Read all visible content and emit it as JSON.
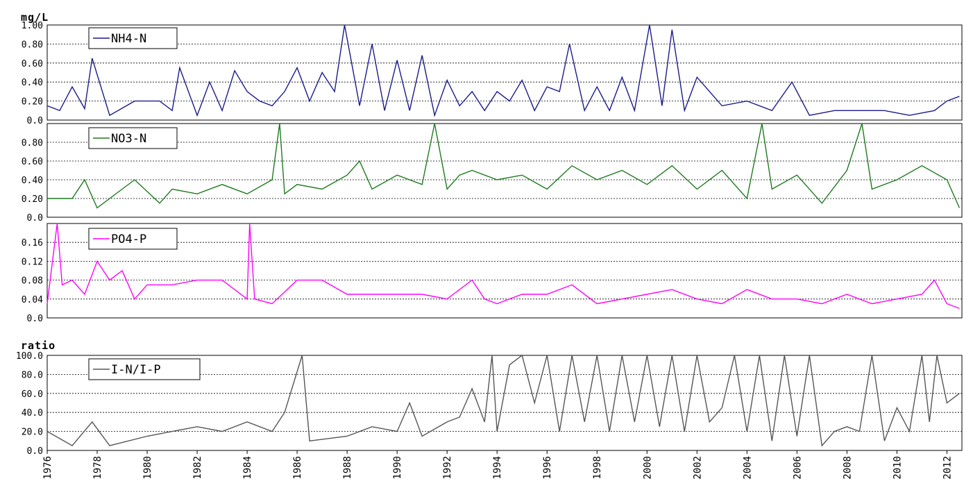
{
  "chart_data": [
    {
      "type": "line",
      "unit_label": "mg/L",
      "legend": "NH4-N",
      "color": "#1a1a8c",
      "ylim": [
        0,
        1.0
      ],
      "yticks": [
        "1.00",
        "0.80",
        "0.60",
        "0.40",
        "0.20",
        "0.0"
      ],
      "grid": true,
      "x": [
        1976.0,
        1976.5,
        1977.0,
        1977.5,
        1977.8,
        1978.5,
        1979.5,
        1980.5,
        1981.0,
        1981.3,
        1982.0,
        1982.5,
        1983.0,
        1983.5,
        1984.0,
        1984.5,
        1985.0,
        1985.5,
        1986.0,
        1986.5,
        1987.0,
        1987.5,
        1987.9,
        1988.5,
        1989.0,
        1989.5,
        1990.0,
        1990.5,
        1991.0,
        1991.5,
        1992.0,
        1992.5,
        1993.0,
        1993.5,
        1994.0,
        1994.5,
        1995.0,
        1995.5,
        1996.0,
        1996.5,
        1996.9,
        1997.5,
        1998.0,
        1998.5,
        1999.0,
        1999.5,
        2000.1,
        2000.6,
        2001.0,
        2001.5,
        2002.0,
        2003.0,
        2004.0,
        2005.0,
        2005.8,
        2006.5,
        2007.5,
        2008.5,
        2009.5,
        2010.5,
        2011.5,
        2012.0,
        2012.5
      ],
      "y": [
        0.15,
        0.1,
        0.35,
        0.12,
        0.65,
        0.05,
        0.2,
        0.2,
        0.1,
        0.55,
        0.05,
        0.4,
        0.1,
        0.52,
        0.3,
        0.2,
        0.15,
        0.3,
        0.55,
        0.2,
        0.5,
        0.3,
        1.0,
        0.15,
        0.8,
        0.1,
        0.63,
        0.1,
        0.68,
        0.05,
        0.42,
        0.15,
        0.3,
        0.1,
        0.3,
        0.2,
        0.42,
        0.1,
        0.35,
        0.3,
        0.8,
        0.1,
        0.35,
        0.1,
        0.45,
        0.1,
        1.0,
        0.15,
        0.95,
        0.1,
        0.45,
        0.15,
        0.2,
        0.1,
        0.4,
        0.05,
        0.1,
        0.1,
        0.1,
        0.05,
        0.1,
        0.2,
        0.25
      ]
    },
    {
      "type": "line",
      "legend": "NO3-N",
      "color": "#1e7a1e",
      "ylim": [
        0,
        1.0
      ],
      "yticks": [
        "0.80",
        "0.60",
        "0.40",
        "0.20",
        "0.0"
      ],
      "grid": true,
      "x": [
        1976.0,
        1977.0,
        1977.5,
        1978.0,
        1979.0,
        1979.5,
        1980.5,
        1981.0,
        1982.0,
        1983.0,
        1984.0,
        1985.0,
        1985.3,
        1985.5,
        1986.0,
        1987.0,
        1988.0,
        1988.5,
        1989.0,
        1990.0,
        1991.0,
        1991.5,
        1992.0,
        1992.5,
        1993.0,
        1994.0,
        1995.0,
        1996.0,
        1997.0,
        1998.0,
        1999.0,
        2000.0,
        2001.0,
        2002.0,
        2003.0,
        2004.0,
        2004.6,
        2005.0,
        2006.0,
        2007.0,
        2008.0,
        2008.6,
        2009.0,
        2010.0,
        2011.0,
        2012.0,
        2012.5
      ],
      "y": [
        0.2,
        0.2,
        0.4,
        0.1,
        0.3,
        0.4,
        0.15,
        0.3,
        0.25,
        0.35,
        0.25,
        0.4,
        1.0,
        0.25,
        0.35,
        0.3,
        0.45,
        0.6,
        0.3,
        0.45,
        0.35,
        1.0,
        0.3,
        0.45,
        0.5,
        0.4,
        0.45,
        0.3,
        0.55,
        0.4,
        0.5,
        0.35,
        0.55,
        0.3,
        0.5,
        0.2,
        1.0,
        0.3,
        0.45,
        0.15,
        0.5,
        1.0,
        0.3,
        0.4,
        0.55,
        0.4,
        0.1
      ]
    },
    {
      "type": "line",
      "legend": "PO4-P",
      "color": "#ff00ff",
      "ylim": [
        0,
        0.2
      ],
      "yticks": [
        "0.16",
        "0.12",
        "0.08",
        "0.04",
        "0.0"
      ],
      "grid": true,
      "x": [
        1976.0,
        1976.4,
        1976.6,
        1977.0,
        1977.5,
        1978.0,
        1978.5,
        1979.0,
        1979.5,
        1980.0,
        1981.0,
        1982.0,
        1983.0,
        1984.0,
        1984.1,
        1984.3,
        1985.0,
        1986.0,
        1987.0,
        1988.0,
        1989.0,
        1990.0,
        1991.0,
        1992.0,
        1993.0,
        1993.5,
        1994.0,
        1995.0,
        1996.0,
        1997.0,
        1998.0,
        1999.0,
        2000.0,
        2001.0,
        2002.0,
        2003.0,
        2004.0,
        2005.0,
        2006.0,
        2007.0,
        2008.0,
        2009.0,
        2010.0,
        2011.0,
        2011.5,
        2012.0,
        2012.5
      ],
      "y": [
        0.03,
        0.2,
        0.07,
        0.08,
        0.05,
        0.12,
        0.08,
        0.1,
        0.04,
        0.07,
        0.07,
        0.08,
        0.08,
        0.04,
        0.2,
        0.04,
        0.03,
        0.08,
        0.08,
        0.05,
        0.05,
        0.05,
        0.05,
        0.04,
        0.08,
        0.04,
        0.03,
        0.05,
        0.05,
        0.07,
        0.03,
        0.04,
        0.05,
        0.06,
        0.04,
        0.03,
        0.06,
        0.04,
        0.04,
        0.03,
        0.05,
        0.03,
        0.04,
        0.05,
        0.08,
        0.03,
        0.02
      ]
    },
    {
      "type": "line",
      "unit_label": "ratio",
      "legend": "I-N/I-P",
      "color": "#555555",
      "ylim": [
        0,
        100
      ],
      "yticks": [
        "100.0",
        "80.0",
        "60.0",
        "40.0",
        "20.0",
        "0.0"
      ],
      "grid": true,
      "x": [
        1976.0,
        1977.0,
        1977.8,
        1978.5,
        1980.0,
        1981.0,
        1982.0,
        1983.0,
        1984.0,
        1985.0,
        1985.5,
        1986.2,
        1986.5,
        1988.0,
        1989.0,
        1990.0,
        1990.5,
        1991.0,
        1992.0,
        1992.5,
        1993.0,
        1993.5,
        1993.8,
        1994.0,
        1994.5,
        1995.0,
        1995.5,
        1996.0,
        1996.5,
        1997.0,
        1997.5,
        1998.0,
        1998.5,
        1999.0,
        1999.5,
        2000.0,
        2000.5,
        2001.0,
        2001.5,
        2002.0,
        2002.5,
        2003.0,
        2003.5,
        2004.0,
        2004.5,
        2005.0,
        2005.5,
        2006.0,
        2006.5,
        2007.0,
        2007.5,
        2008.0,
        2008.5,
        2009.0,
        2009.5,
        2010.0,
        2010.5,
        2011.0,
        2011.3,
        2011.6,
        2012.0,
        2012.5
      ],
      "y": [
        20,
        5,
        30,
        5,
        15,
        20,
        25,
        20,
        30,
        20,
        40,
        100,
        10,
        15,
        25,
        20,
        50,
        15,
        30,
        35,
        65,
        30,
        100,
        20,
        90,
        100,
        50,
        100,
        20,
        100,
        30,
        100,
        20,
        100,
        30,
        100,
        25,
        100,
        20,
        100,
        30,
        45,
        100,
        20,
        100,
        10,
        100,
        15,
        100,
        5,
        20,
        25,
        20,
        100,
        10,
        45,
        20,
        100,
        30,
        100,
        50,
        60
      ]
    }
  ],
  "x_axis": {
    "ticks": [
      "1976",
      "1978",
      "1980",
      "1982",
      "1984",
      "1986",
      "1988",
      "1990",
      "1992",
      "1994",
      "1996",
      "1998",
      "2000",
      "2002",
      "2004",
      "2006",
      "2008",
      "2010",
      "2012"
    ],
    "xlim": [
      1976,
      2012.6
    ]
  }
}
